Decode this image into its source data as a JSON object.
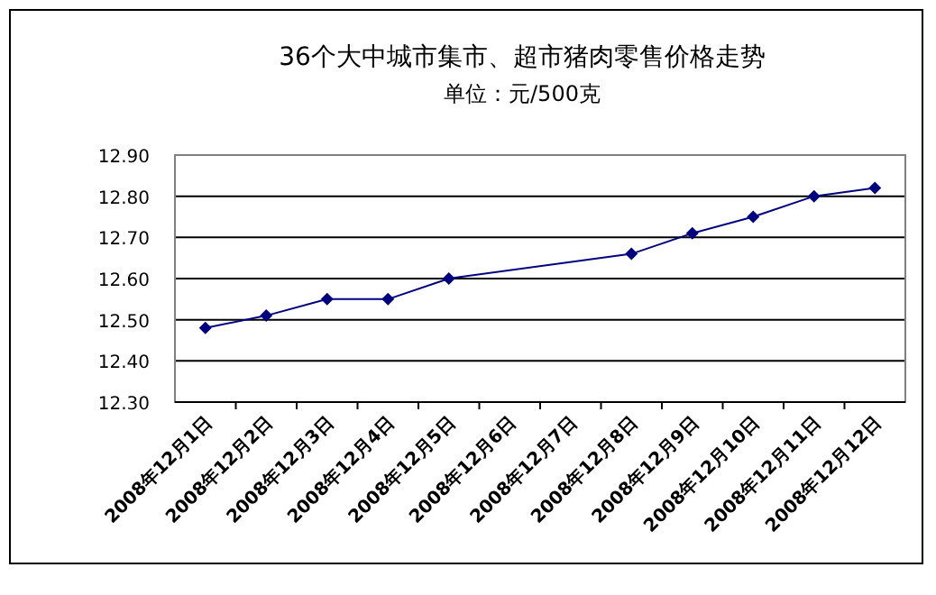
{
  "chart_data": {
    "type": "line",
    "title": "36个大中城市集市、超市猪肉零售价格走势",
    "subtitle": "单位：元/500克",
    "categories": [
      "2008年12月1日",
      "2008年12月2日",
      "2008年12月3日",
      "2008年12月4日",
      "2008年12月5日",
      "2008年12月6日",
      "2008年12月7日",
      "2008年12月8日",
      "2008年12月9日",
      "2008年12月10日",
      "2008年12月11日",
      "2008年12月12日"
    ],
    "series": [
      {
        "color": "#000080",
        "values": [
          12.48,
          12.51,
          12.55,
          12.55,
          12.6,
          null,
          null,
          12.66,
          12.71,
          12.75,
          12.8,
          12.82
        ]
      }
    ],
    "ylim": [
      12.3,
      12.9
    ],
    "yticks": [
      {
        "value": 12.3,
        "label": "12.30"
      },
      {
        "value": 12.4,
        "label": "12.40"
      },
      {
        "value": 12.5,
        "label": "12.50"
      },
      {
        "value": 12.6,
        "label": "12.60"
      },
      {
        "value": 12.7,
        "label": "12.70"
      },
      {
        "value": 12.8,
        "label": "12.80"
      },
      {
        "value": 12.9,
        "label": "12.90"
      }
    ],
    "grid": "y",
    "marker": "diamond",
    "line_style": "solid"
  }
}
